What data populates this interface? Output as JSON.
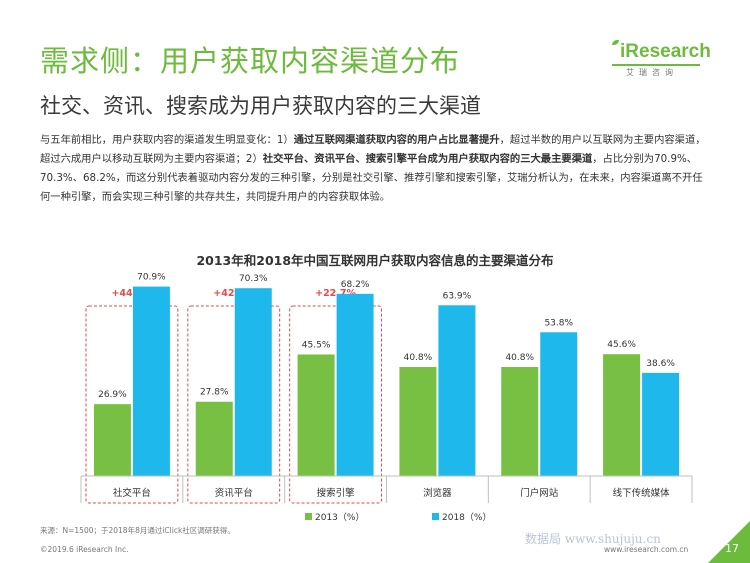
{
  "header": {
    "title": "需求侧：用户获取内容渠道分布",
    "subtitle": "社交、资讯、搜索成为用户获取内容的三大渠道",
    "logo_text": "iResearch",
    "logo_sub": "艾瑞咨询"
  },
  "intro": {
    "p1": "与五年前相比，用户获取内容的渠道发生明显变化：1）",
    "b1": "通过互联网渠道获取内容的用户占比显著提升",
    "p2": "，超过半数的用户以互联网为主要内容渠道，超过六成用户以移动互联网为主要内容渠道；2）",
    "b2": "社交平台、资讯平台、搜索引擎平台成为用户获取内容的三大最主要渠道",
    "p3": "，占比分别为70.9%、70.3%、68.2%，而这分别代表着驱动内容分发的三种引擎，分别是社交引擎、推荐引擎和搜索引擎，艾瑞分析认为，在未来，内容渠道离不开任何一种引擎，而会实现三种引擎的共存共生，共同提升用户的内容获取体验。"
  },
  "chart_data": {
    "type": "bar",
    "title": "2013年和2018年中国互联网用户获取内容信息的主要渠道分布",
    "categories": [
      "社交平台",
      "资讯平台",
      "搜索引擎",
      "浏览器",
      "门户网站",
      "线下传统媒体"
    ],
    "series": [
      {
        "name": "2013（%）",
        "values": [
          26.9,
          27.8,
          45.5,
          40.8,
          40.8,
          45.6
        ],
        "color": "#78c043"
      },
      {
        "name": "2018（%）",
        "values": [
          70.9,
          70.3,
          68.2,
          63.9,
          53.8,
          38.6
        ],
        "color": "#1eb8ec"
      }
    ],
    "value_labels": [
      [
        "26.9%",
        "27.8%",
        "45.5%",
        "40.8%",
        "40.8%",
        "45.6%"
      ],
      [
        "70.9%",
        "70.3%",
        "68.2%",
        "63.9%",
        "53.8%",
        "38.6%"
      ]
    ],
    "growth_labels": [
      "+44.0%",
      "+42.5%",
      "+22.7%"
    ],
    "highlight_color": "#e8474b",
    "ylim": [
      0,
      80
    ],
    "grid": false,
    "legend": "bottom"
  },
  "footer": {
    "source": "来源：N=1500；于2018年8月通过iClick社区调研获得。",
    "copyright": "©2019.6 iResearch Inc.",
    "website": "www.iresearch.com.cn",
    "page": "17",
    "watermark": "数据局 www.shujuju.cn"
  }
}
